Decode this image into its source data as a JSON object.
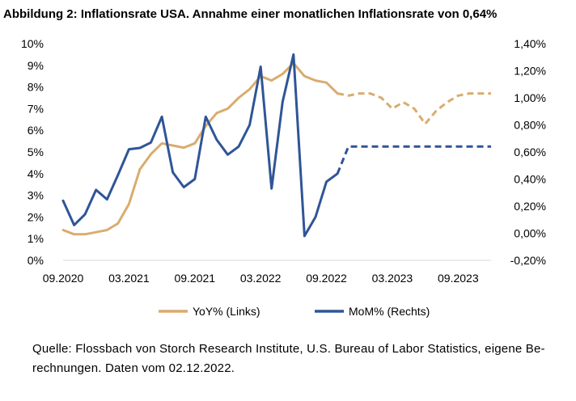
{
  "title": "Abbildung 2: Inflationsrate USA. Annahme einer monatlichen Inflationsrate von 0,64%",
  "source": "Quelle: Flossbach von Storch Research Institute, U.S. Bureau of Labor Statistics, eigene Be-rechnungen. Daten vom 02.12.2022.",
  "colors": {
    "yoy": "#D9AC6E",
    "mom": "#2F5597"
  },
  "chart_data": {
    "type": "line",
    "x_tick_labels": [
      "09.2020",
      "03.2021",
      "09.2021",
      "03.2022",
      "09.2022",
      "03.2023",
      "09.2023"
    ],
    "x_start": "09.2020",
    "x_end": "12.2023",
    "y_left": {
      "min": 0,
      "max": 10,
      "step": 1,
      "tick_labels": [
        "0%",
        "1%",
        "2%",
        "3%",
        "4%",
        "5%",
        "6%",
        "7%",
        "8%",
        "9%",
        "10%"
      ]
    },
    "y_right": {
      "min": -0.2,
      "max": 1.4,
      "step": 0.2,
      "tick_labels": [
        "-0,20%",
        "0,00%",
        "0,20%",
        "0,40%",
        "0,60%",
        "0,80%",
        "1,00%",
        "1,20%",
        "1,40%"
      ]
    },
    "grid": false,
    "legend_position": "bottom",
    "series": [
      {
        "name": "YoY% (Links)",
        "axis": "left",
        "color": "#D9AC6E",
        "actual": [
          [
            "09.2020",
            1.4
          ],
          [
            "10.2020",
            1.2
          ],
          [
            "11.2020",
            1.2
          ],
          [
            "12.2020",
            1.3
          ],
          [
            "01.2021",
            1.4
          ],
          [
            "02.2021",
            1.7
          ],
          [
            "03.2021",
            2.6
          ],
          [
            "04.2021",
            4.2
          ],
          [
            "05.2021",
            4.9
          ],
          [
            "06.2021",
            5.4
          ],
          [
            "07.2021",
            5.3
          ],
          [
            "08.2021",
            5.2
          ],
          [
            "09.2021",
            5.4
          ],
          [
            "10.2021",
            6.2
          ],
          [
            "11.2021",
            6.8
          ],
          [
            "12.2021",
            7.0
          ],
          [
            "01.2022",
            7.5
          ],
          [
            "02.2022",
            7.9
          ],
          [
            "03.2022",
            8.5
          ],
          [
            "04.2022",
            8.3
          ],
          [
            "05.2022",
            8.6
          ],
          [
            "06.2022",
            9.1
          ],
          [
            "07.2022",
            8.5
          ],
          [
            "08.2022",
            8.3
          ],
          [
            "09.2022",
            8.2
          ],
          [
            "10.2022",
            7.7
          ]
        ],
        "forecast": [
          [
            "10.2022",
            7.7
          ],
          [
            "11.2022",
            7.6
          ],
          [
            "12.2022",
            7.7
          ],
          [
            "01.2023",
            7.7
          ],
          [
            "02.2023",
            7.5
          ],
          [
            "03.2023",
            7.0
          ],
          [
            "04.2023",
            7.3
          ],
          [
            "05.2023",
            7.0
          ],
          [
            "06.2023",
            6.3
          ],
          [
            "07.2023",
            6.9
          ],
          [
            "08.2023",
            7.3
          ],
          [
            "09.2023",
            7.6
          ],
          [
            "10.2023",
            7.7
          ],
          [
            "11.2023",
            7.7
          ],
          [
            "12.2023",
            7.7
          ]
        ]
      },
      {
        "name": "MoM% (Rechts)",
        "axis": "right",
        "color": "#2F5597",
        "actual": [
          [
            "09.2020",
            0.24
          ],
          [
            "10.2020",
            0.06
          ],
          [
            "11.2020",
            0.14
          ],
          [
            "12.2020",
            0.32
          ],
          [
            "01.2021",
            0.25
          ],
          [
            "02.2021",
            0.43
          ],
          [
            "03.2021",
            0.62
          ],
          [
            "04.2021",
            0.63
          ],
          [
            "05.2021",
            0.67
          ],
          [
            "06.2021",
            0.86
          ],
          [
            "07.2021",
            0.45
          ],
          [
            "08.2021",
            0.34
          ],
          [
            "09.2021",
            0.4
          ],
          [
            "10.2021",
            0.86
          ],
          [
            "11.2021",
            0.69
          ],
          [
            "12.2021",
            0.58
          ],
          [
            "01.2022",
            0.64
          ],
          [
            "02.2022",
            0.8
          ],
          [
            "03.2022",
            1.23
          ],
          [
            "04.2022",
            0.33
          ],
          [
            "05.2022",
            0.97
          ],
          [
            "06.2022",
            1.32
          ],
          [
            "07.2022",
            -0.02
          ],
          [
            "08.2022",
            0.12
          ],
          [
            "09.2022",
            0.38
          ],
          [
            "10.2022",
            0.44
          ]
        ],
        "forecast": [
          [
            "10.2022",
            0.44
          ],
          [
            "11.2022",
            0.64
          ],
          [
            "12.2022",
            0.64
          ],
          [
            "01.2023",
            0.64
          ],
          [
            "02.2023",
            0.64
          ],
          [
            "03.2023",
            0.64
          ],
          [
            "04.2023",
            0.64
          ],
          [
            "05.2023",
            0.64
          ],
          [
            "06.2023",
            0.64
          ],
          [
            "07.2023",
            0.64
          ],
          [
            "08.2023",
            0.64
          ],
          [
            "09.2023",
            0.64
          ],
          [
            "10.2023",
            0.64
          ],
          [
            "11.2023",
            0.64
          ],
          [
            "12.2023",
            0.64
          ]
        ]
      }
    ]
  }
}
